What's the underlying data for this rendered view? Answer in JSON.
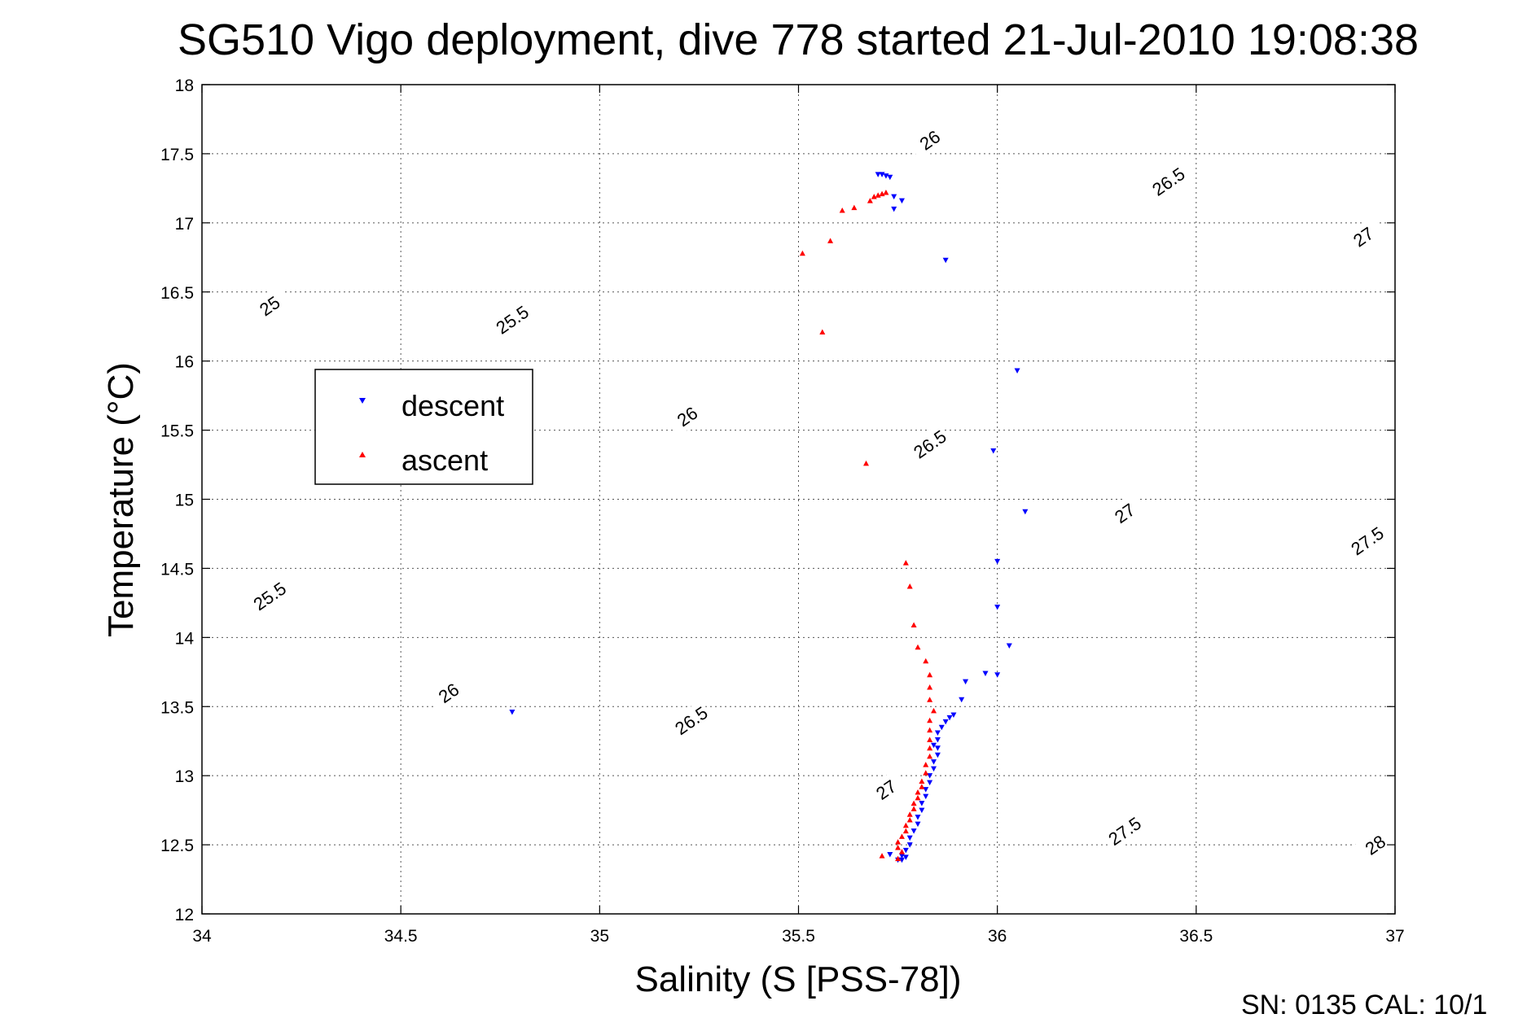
{
  "chart_data": {
    "type": "scatter",
    "title": "SG510 Vigo deployment, dive 778 started 21-Jul-2010 19:08:38",
    "xlabel": "Salinity (S [PSS-78])",
    "ylabel": "Temperature (°C)",
    "xlim": [
      34,
      37
    ],
    "ylim": [
      12,
      18
    ],
    "xticks": [
      "34",
      "34.5",
      "35",
      "35.5",
      "36",
      "36.5",
      "37"
    ],
    "yticks": [
      "12",
      "12.5",
      "13",
      "13.5",
      "14",
      "14.5",
      "15",
      "15.5",
      "16",
      "16.5",
      "17",
      "17.5",
      "18"
    ],
    "grid": true,
    "legend_position": "left-middle",
    "footer": "SN: 0135  CAL: 10/1",
    "series": [
      {
        "name": "descent",
        "color": "#0000ff",
        "marker": "triangle-down",
        "points": [
          [
            34.78,
            13.46
          ],
          [
            35.7,
            17.35
          ],
          [
            35.71,
            17.35
          ],
          [
            35.72,
            17.34
          ],
          [
            35.73,
            17.33
          ],
          [
            35.74,
            17.19
          ],
          [
            35.76,
            17.16
          ],
          [
            35.74,
            17.1
          ],
          [
            35.87,
            16.73
          ],
          [
            36.05,
            15.93
          ],
          [
            35.99,
            15.35
          ],
          [
            36.07,
            14.91
          ],
          [
            36.0,
            14.55
          ],
          [
            36.0,
            14.22
          ],
          [
            36.03,
            13.94
          ],
          [
            36.0,
            13.73
          ],
          [
            35.97,
            13.74
          ],
          [
            35.92,
            13.68
          ],
          [
            35.91,
            13.55
          ],
          [
            35.89,
            13.44
          ],
          [
            35.88,
            13.42
          ],
          [
            35.87,
            13.39
          ],
          [
            35.86,
            13.35
          ],
          [
            35.85,
            13.31
          ],
          [
            35.85,
            13.26
          ],
          [
            35.84,
            13.22
          ],
          [
            35.85,
            13.2
          ],
          [
            35.85,
            13.15
          ],
          [
            35.84,
            13.1
          ],
          [
            35.84,
            13.05
          ],
          [
            35.83,
            13.0
          ],
          [
            35.83,
            12.95
          ],
          [
            35.82,
            12.9
          ],
          [
            35.82,
            12.85
          ],
          [
            35.81,
            12.8
          ],
          [
            35.81,
            12.75
          ],
          [
            35.8,
            12.7
          ],
          [
            35.8,
            12.65
          ],
          [
            35.79,
            12.6
          ],
          [
            35.78,
            12.55
          ],
          [
            35.78,
            12.5
          ],
          [
            35.77,
            12.46
          ],
          [
            35.76,
            12.42
          ],
          [
            35.75,
            12.39
          ],
          [
            35.76,
            12.39
          ],
          [
            35.77,
            12.41
          ],
          [
            35.73,
            12.43
          ]
        ]
      },
      {
        "name": "ascent",
        "color": "#ff0000",
        "marker": "triangle-up",
        "points": [
          [
            35.72,
            17.22
          ],
          [
            35.71,
            17.21
          ],
          [
            35.7,
            17.2
          ],
          [
            35.69,
            17.19
          ],
          [
            35.68,
            17.16
          ],
          [
            35.64,
            17.11
          ],
          [
            35.61,
            17.09
          ],
          [
            35.58,
            16.87
          ],
          [
            35.51,
            16.78
          ],
          [
            35.56,
            16.21
          ],
          [
            35.67,
            15.26
          ],
          [
            35.77,
            14.54
          ],
          [
            35.78,
            14.37
          ],
          [
            35.79,
            14.09
          ],
          [
            35.8,
            13.93
          ],
          [
            35.82,
            13.83
          ],
          [
            35.83,
            13.73
          ],
          [
            35.83,
            13.64
          ],
          [
            35.83,
            13.55
          ],
          [
            35.84,
            13.47
          ],
          [
            35.83,
            13.4
          ],
          [
            35.83,
            13.33
          ],
          [
            35.83,
            13.26
          ],
          [
            35.83,
            13.2
          ],
          [
            35.83,
            13.14
          ],
          [
            35.82,
            13.08
          ],
          [
            35.82,
            13.02
          ],
          [
            35.81,
            12.96
          ],
          [
            35.81,
            12.92
          ],
          [
            35.8,
            12.88
          ],
          [
            35.8,
            12.84
          ],
          [
            35.79,
            12.8
          ],
          [
            35.79,
            12.76
          ],
          [
            35.78,
            12.72
          ],
          [
            35.78,
            12.68
          ],
          [
            35.77,
            12.64
          ],
          [
            35.77,
            12.6
          ],
          [
            35.76,
            12.56
          ],
          [
            35.75,
            12.52
          ],
          [
            35.75,
            12.48
          ],
          [
            35.76,
            12.45
          ],
          [
            35.75,
            12.4
          ],
          [
            35.71,
            12.42
          ]
        ]
      }
    ],
    "density_contours": [
      {
        "level": "25",
        "offset": -14.83,
        "labels": [
          [
            34.17,
            16.4
          ]
        ]
      },
      {
        "level": "25.5",
        "offset": -15.85,
        "labels": [
          [
            34.78,
            16.3
          ],
          [
            34.17,
            14.3
          ]
        ]
      },
      {
        "level": "26",
        "offset": -16.87,
        "labels": [
          [
            35.83,
            17.6
          ],
          [
            35.22,
            15.6
          ],
          [
            34.62,
            13.6
          ]
        ]
      },
      {
        "level": "26.5",
        "offset": -17.89,
        "labels": [
          [
            36.43,
            17.3
          ],
          [
            35.83,
            15.4
          ],
          [
            35.23,
            13.4
          ]
        ]
      },
      {
        "level": "27",
        "offset": -18.91,
        "labels": [
          [
            36.92,
            16.9
          ],
          [
            36.32,
            14.9
          ],
          [
            35.72,
            12.9
          ]
        ]
      },
      {
        "level": "27.5",
        "offset": -19.93,
        "labels": [
          [
            36.93,
            14.7
          ],
          [
            36.32,
            12.6
          ]
        ]
      },
      {
        "level": "28",
        "offset": -20.95,
        "labels": [
          [
            36.95,
            12.5
          ]
        ]
      }
    ]
  }
}
